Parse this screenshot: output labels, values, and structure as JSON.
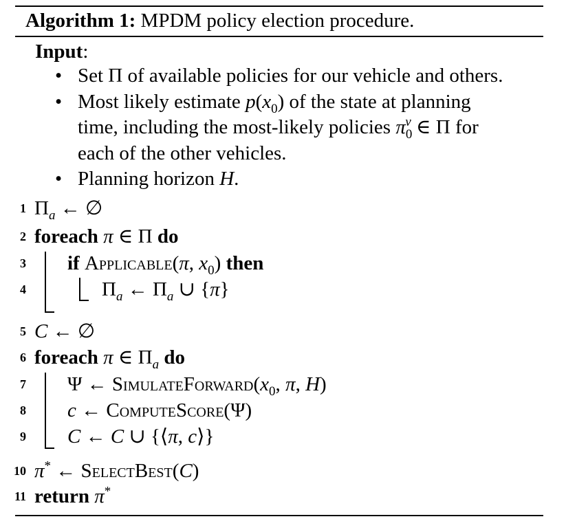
{
  "caption": {
    "label": "Algorithm 1:",
    "text": "MPDM policy election procedure."
  },
  "input": {
    "label": "Input",
    "colon": ":",
    "bullets": [
      "Set Π of available policies for our vehicle and others.",
      "Most likely estimate p(x0) of the state at planning time, including the most-likely policies π0v ∈ Π for each of the other vehicles.",
      "Planning horizon H."
    ]
  },
  "lines": [
    {
      "no": "1",
      "text": "Πa ← ∅"
    },
    {
      "no": "2",
      "text": "foreach π ∈ Π do"
    },
    {
      "no": "3",
      "text": "if Applicable(π, x0) then"
    },
    {
      "no": "4",
      "text": "Πa ← Πa ∪ {π}"
    },
    {
      "no": "5",
      "text": "C ← ∅"
    },
    {
      "no": "6",
      "text": "foreach π ∈ Πa do"
    },
    {
      "no": "7",
      "text": "Ψ ← SimulateForward(x0, π, H)"
    },
    {
      "no": "8",
      "text": "c ← ComputeScore(Ψ)"
    },
    {
      "no": "9",
      "text": "C ← C ∪ {⟨π, c⟩}"
    },
    {
      "no": "10",
      "text": "π* ← SelectBest(C)"
    },
    {
      "no": "11",
      "text": "return π*"
    }
  ]
}
